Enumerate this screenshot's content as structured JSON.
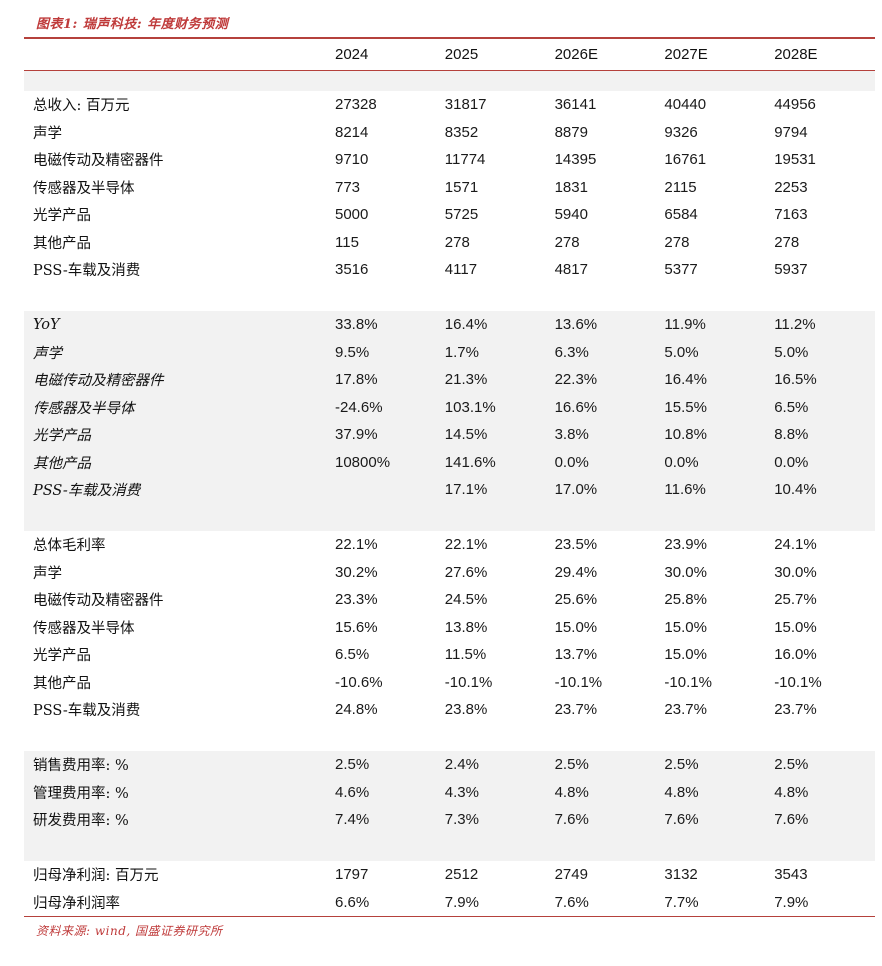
{
  "title": "图表1: 瑞声科技: 年度财务预测",
  "source": "资料来源: wind, 国盛证券研究所",
  "colors": {
    "accent_line_red": "#b5413c",
    "title_red": "#bf3a3a",
    "row_shade_gray": "#f2f2f2",
    "text_black": "#1a1a1a"
  },
  "table": {
    "year_headers": [
      "2024",
      "2025",
      "2026E",
      "2027E",
      "2028E"
    ],
    "sections": [
      {
        "name": "revenue",
        "style": "normal",
        "rows": [
          {
            "label": "总收入: 百万元",
            "values": [
              "27328",
              "31817",
              "36141",
              "40440",
              "44956"
            ]
          },
          {
            "label": "声学",
            "values": [
              "8214",
              "8352",
              "8879",
              "9326",
              "9794"
            ]
          },
          {
            "label": "电磁传动及精密器件",
            "values": [
              "9710",
              "11774",
              "14395",
              "16761",
              "19531"
            ]
          },
          {
            "label": "传感器及半导体",
            "values": [
              "773",
              "1571",
              "1831",
              "2115",
              "2253"
            ]
          },
          {
            "label": "光学产品",
            "values": [
              "5000",
              "5725",
              "5940",
              "6584",
              "7163"
            ]
          },
          {
            "label": "其他产品",
            "values": [
              "115",
              "278",
              "278",
              "278",
              "278"
            ]
          },
          {
            "label": "PSS-车载及消费",
            "values": [
              "3516",
              "4117",
              "4817",
              "5377",
              "5937"
            ]
          }
        ]
      },
      {
        "name": "yoy-growth",
        "style": "italic",
        "rows": [
          {
            "label": "YoY",
            "values": [
              "33.8%",
              "16.4%",
              "13.6%",
              "11.9%",
              "11.2%"
            ]
          },
          {
            "label": "声学",
            "values": [
              "9.5%",
              "1.7%",
              "6.3%",
              "5.0%",
              "5.0%"
            ]
          },
          {
            "label": "电磁传动及精密器件",
            "values": [
              "17.8%",
              "21.3%",
              "22.3%",
              "16.4%",
              "16.5%"
            ]
          },
          {
            "label": "传感器及半导体",
            "values": [
              "-24.6%",
              "103.1%",
              "16.6%",
              "15.5%",
              "6.5%"
            ]
          },
          {
            "label": "光学产品",
            "values": [
              "37.9%",
              "14.5%",
              "3.8%",
              "10.8%",
              "8.8%"
            ]
          },
          {
            "label": "其他产品",
            "values": [
              "10800%",
              "141.6%",
              "0.0%",
              "0.0%",
              "0.0%"
            ]
          },
          {
            "label": "PSS-车载及消费",
            "values": [
              "",
              "17.1%",
              "17.0%",
              "11.6%",
              "10.4%"
            ]
          }
        ]
      },
      {
        "name": "gross-margin",
        "style": "normal",
        "rows": [
          {
            "label": "总体毛利率",
            "values": [
              "22.1%",
              "22.1%",
              "23.5%",
              "23.9%",
              "24.1%"
            ]
          },
          {
            "label": "声学",
            "values": [
              "30.2%",
              "27.6%",
              "29.4%",
              "30.0%",
              "30.0%"
            ]
          },
          {
            "label": "电磁传动及精密器件",
            "values": [
              "23.3%",
              "24.5%",
              "25.6%",
              "25.8%",
              "25.7%"
            ]
          },
          {
            "label": "传感器及半导体",
            "values": [
              "15.6%",
              "13.8%",
              "15.0%",
              "15.0%",
              "15.0%"
            ]
          },
          {
            "label": "光学产品",
            "values": [
              "6.5%",
              "11.5%",
              "13.7%",
              "15.0%",
              "16.0%"
            ]
          },
          {
            "label": "其他产品",
            "values": [
              "-10.6%",
              "-10.1%",
              "-10.1%",
              "-10.1%",
              "-10.1%"
            ]
          },
          {
            "label": "PSS-车载及消费",
            "values": [
              "24.8%",
              "23.8%",
              "23.7%",
              "23.7%",
              "23.7%"
            ]
          }
        ]
      },
      {
        "name": "expense-ratios",
        "style": "normal",
        "rows": [
          {
            "label": "销售费用率: %",
            "values": [
              "2.5%",
              "2.4%",
              "2.5%",
              "2.5%",
              "2.5%"
            ]
          },
          {
            "label": "管理费用率: %",
            "values": [
              "4.6%",
              "4.3%",
              "4.8%",
              "4.8%",
              "4.8%"
            ]
          },
          {
            "label": "研发费用率: %",
            "values": [
              "7.4%",
              "7.3%",
              "7.6%",
              "7.6%",
              "7.6%"
            ]
          }
        ]
      },
      {
        "name": "net-profit",
        "style": "normal",
        "rows": [
          {
            "label": "归母净利润: 百万元",
            "values": [
              "1797",
              "2512",
              "2749",
              "3132",
              "3543"
            ]
          },
          {
            "label": "归母净利润率",
            "values": [
              "6.6%",
              "7.9%",
              "7.6%",
              "7.7%",
              "7.9%"
            ]
          }
        ]
      }
    ]
  }
}
